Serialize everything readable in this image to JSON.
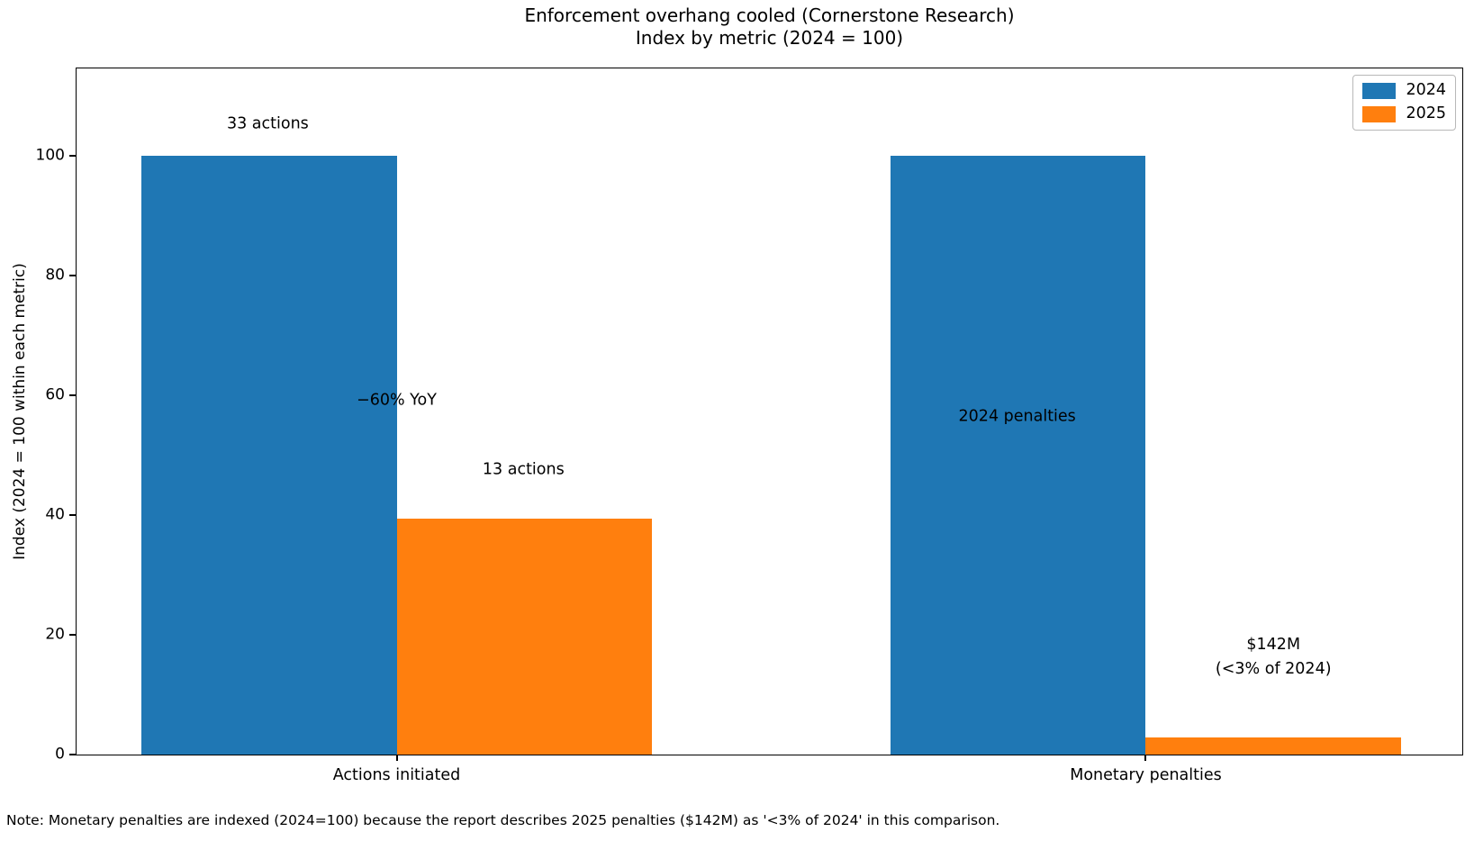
{
  "figure": {
    "note": "Note: Monetary penalties are indexed (2024=100) because the report describes 2025 penalties ($142M) as '<3% of 2024' in this comparison."
  },
  "chart_data": {
    "type": "bar",
    "title": "Enforcement overhang cooled (Cornerstone Research)",
    "subtitle": "Index by metric (2024 = 100)",
    "categories": [
      "Actions initiated",
      "Monetary penalties"
    ],
    "series": [
      {
        "name": "2024",
        "color": "#1f77b4",
        "values": [
          100,
          100
        ]
      },
      {
        "name": "2025",
        "color": "#ff7f0e",
        "values": [
          39.4,
          2.8
        ]
      }
    ],
    "xlabel": "",
    "ylabel": "Index (2024 = 100 within each metric)",
    "ylim": [
      0,
      114.6
    ],
    "yticks": [
      0,
      20,
      40,
      60,
      80,
      100
    ],
    "grid": false,
    "legend_position": "upper right",
    "annotations": [
      {
        "lines": [
          "33 actions"
        ],
        "fx": 0.138,
        "fy": 0.081
      },
      {
        "lines": [
          "−60% YoY"
        ],
        "fx": 0.231,
        "fy": 0.484
      },
      {
        "lines": [
          "13 actions"
        ],
        "fx": 0.3225,
        "fy": 0.585
      },
      {
        "lines": [
          "2024 penalties"
        ],
        "fx": 0.6788,
        "fy": 0.508
      },
      {
        "lines": [
          "$142M",
          "(<3% of 2024)"
        ],
        "fx": 0.8637,
        "fy": 0.8586
      }
    ],
    "layout": {
      "group_center_frac": [
        0.231,
        0.7716
      ],
      "bar_width_frac": 0.184
    }
  }
}
